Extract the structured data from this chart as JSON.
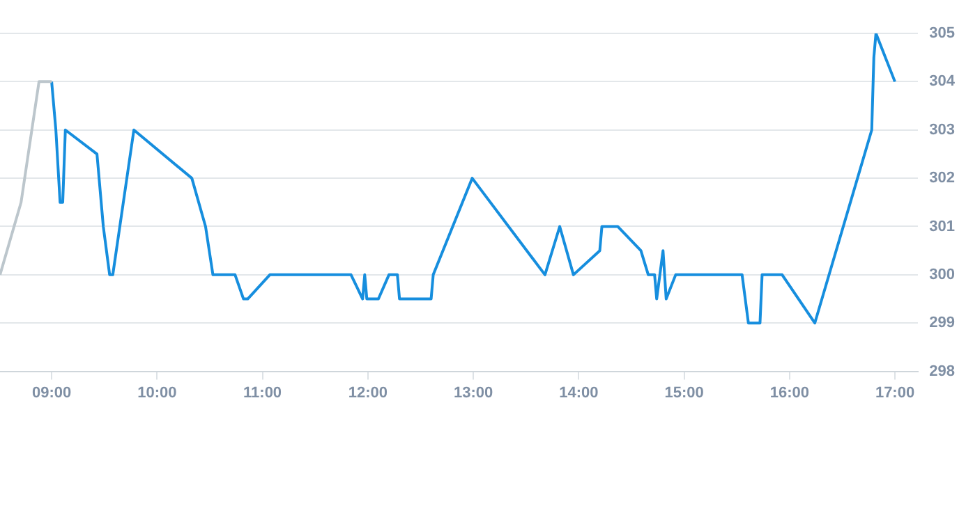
{
  "chart_data": {
    "type": "line",
    "xlim": [
      8.51,
      17.22
    ],
    "ylim": [
      298,
      305
    ],
    "xticks": [
      {
        "value": 9,
        "label": "09:00"
      },
      {
        "value": 10,
        "label": "10:00"
      },
      {
        "value": 11,
        "label": "11:00"
      },
      {
        "value": 12,
        "label": "12:00"
      },
      {
        "value": 13,
        "label": "13:00"
      },
      {
        "value": 14,
        "label": "14:00"
      },
      {
        "value": 15,
        "label": "15:00"
      },
      {
        "value": 16,
        "label": "16:00"
      },
      {
        "value": 17,
        "label": "17:00"
      }
    ],
    "yticks": [
      298,
      299,
      300,
      301,
      302,
      303,
      304,
      305
    ],
    "grid": "y",
    "legend": false,
    "marker": "none",
    "line_style": "solid",
    "series": [
      {
        "color": "#bcc6cc",
        "x": [
          8.51,
          8.71,
          8.88,
          8.97,
          9.0
        ],
        "values": [
          300,
          301.5,
          304,
          304,
          304
        ]
      },
      {
        "color": "#168ede",
        "x": [
          9.0,
          9.04,
          9.08,
          9.105,
          9.13,
          9.43,
          9.49,
          9.55,
          9.58,
          9.78,
          10.33,
          10.46,
          10.53,
          10.74,
          10.82,
          10.86,
          11.07,
          11.84,
          11.95,
          11.97,
          11.99,
          12.1,
          12.2,
          12.28,
          12.3,
          12.6,
          12.62,
          12.99,
          13.68,
          13.82,
          13.95,
          14.2,
          14.22,
          14.37,
          14.59,
          14.66,
          14.72,
          14.74,
          14.8,
          14.83,
          14.92,
          15.55,
          15.61,
          15.72,
          15.74,
          15.93,
          16.24,
          16.78,
          16.8,
          16.82,
          17.0
        ],
        "values": [
          304,
          303,
          301.5,
          301.5,
          303,
          302.5,
          301,
          300,
          300,
          303,
          302,
          301,
          300,
          300,
          299.5,
          299.5,
          300,
          300,
          299.5,
          300,
          299.5,
          299.5,
          300,
          300,
          299.5,
          299.5,
          300,
          302,
          300,
          301,
          300,
          300.5,
          301,
          301,
          300.5,
          300,
          300,
          299.5,
          300.5,
          299.5,
          300,
          300,
          299,
          299,
          300,
          300,
          299,
          303,
          304.5,
          305,
          304
        ]
      }
    ]
  }
}
